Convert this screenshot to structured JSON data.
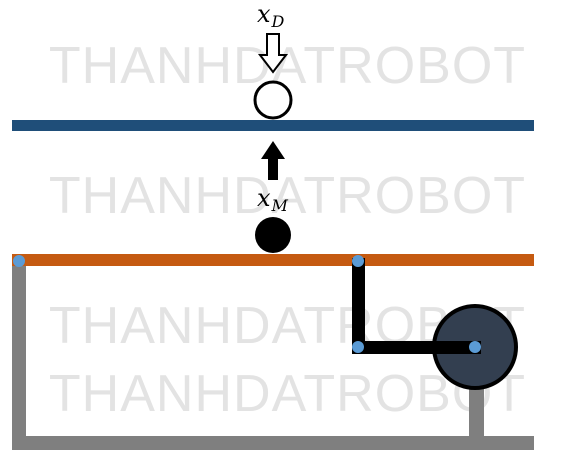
{
  "watermark": {
    "text": "THANHDATROBOT"
  },
  "labels": {
    "desired_position": {
      "base": "x",
      "subscript": "D"
    },
    "measured_position": {
      "base": "x",
      "subscript": "M"
    }
  },
  "colors": {
    "top_bar": "#1f4e79",
    "bottom_bar": "#c55a11",
    "frame": "#7f7f7f",
    "linkage": "#000000",
    "pivot_joints": "#5b9bd5",
    "wheel_fill": "#333f50",
    "ball_fill": "#000000"
  },
  "icons": {
    "desired_arrow": "hollow-down-arrow-icon",
    "correction_arrow": "solid-up-arrow-icon"
  }
}
